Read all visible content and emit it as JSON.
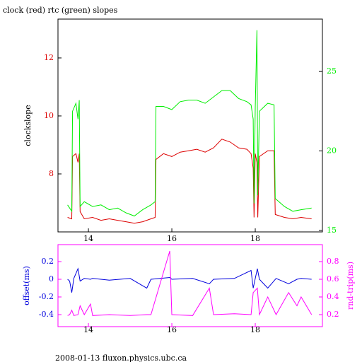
{
  "chart_data": [
    {
      "type": "line",
      "title": "clock (red) rtc (green) slopes",
      "ylabel": "clockslope",
      "x": [
        13.5,
        13.6,
        13.62,
        13.7,
        13.75,
        13.78,
        13.8,
        13.9,
        14.1,
        14.3,
        14.5,
        14.7,
        14.9,
        15.1,
        15.3,
        15.5,
        15.6,
        15.62,
        15.8,
        16.0,
        16.2,
        16.4,
        16.6,
        16.8,
        17.0,
        17.2,
        17.4,
        17.6,
        17.8,
        17.9,
        17.95,
        17.97,
        18.0,
        18.04,
        18.06,
        18.1,
        18.3,
        18.45,
        18.48,
        18.7,
        18.9,
        19.1,
        19.35
      ],
      "series": [
        {
          "color": "#dd0000",
          "values": [
            6.5,
            6.45,
            8.6,
            8.7,
            8.4,
            8.7,
            6.7,
            6.45,
            6.5,
            6.4,
            6.45,
            6.4,
            6.35,
            6.3,
            6.35,
            6.45,
            6.5,
            8.5,
            8.7,
            8.6,
            8.75,
            8.8,
            8.85,
            8.75,
            8.9,
            9.2,
            9.1,
            8.9,
            8.85,
            8.7,
            8.2,
            6.5,
            8.7,
            8.4,
            6.5,
            8.6,
            8.8,
            8.8,
            6.6,
            6.5,
            6.45,
            6.5,
            6.45
          ]
        },
        {
          "color": "#00ee00",
          "axis": "y2",
          "values": [
            16.6,
            16.2,
            22.5,
            23.0,
            22.0,
            23.2,
            16.5,
            16.8,
            16.5,
            16.6,
            16.3,
            16.4,
            16.1,
            15.9,
            16.3,
            16.6,
            16.8,
            22.8,
            22.8,
            22.6,
            23.1,
            23.2,
            23.2,
            23.0,
            23.4,
            23.8,
            23.8,
            23.3,
            23.1,
            22.9,
            22.0,
            16.7,
            22.7,
            27.6,
            17.2,
            22.5,
            23.0,
            22.9,
            17.0,
            16.5,
            16.2,
            16.3,
            16.4
          ]
        }
      ],
      "xlim": [
        13.27,
        19.61
      ],
      "xticks": [
        14,
        16,
        18
      ],
      "ylim": [
        6,
        13.34
      ],
      "yticks": [
        8,
        10,
        12
      ],
      "y2lim": [
        14.9,
        28.3
      ],
      "y2ticks": [
        15,
        20,
        25
      ]
    },
    {
      "type": "line",
      "ylabel": "offset(ms)",
      "y2label": "rnd-trip(ms)",
      "x": [
        13.5,
        13.55,
        13.6,
        13.65,
        13.75,
        13.8,
        13.9,
        14.05,
        14.1,
        14.5,
        15.0,
        15.4,
        15.5,
        15.95,
        16.0,
        16.5,
        16.9,
        17.0,
        17.5,
        17.9,
        17.95,
        18.05,
        18.1,
        18.3,
        18.5,
        18.8,
        19.0,
        19.1,
        19.35
      ],
      "series": [
        {
          "color": "#0000dd",
          "values": [
            0,
            -0.02,
            -0.15,
            0.01,
            0.12,
            -0.02,
            0.01,
            0,
            0.01,
            -0.01,
            0.01,
            -0.1,
            0,
            0.02,
            0,
            0.01,
            -0.05,
            0,
            0.01,
            0.1,
            -0.1,
            0.12,
            0,
            -0.1,
            0.01,
            -0.05,
            0,
            0.01,
            0
          ]
        },
        {
          "color": "#ff00ff",
          "axis": "y2",
          "values": [
            0.19,
            0.2,
            0.25,
            0.19,
            0.2,
            0.3,
            0.2,
            0.32,
            0.19,
            0.2,
            0.19,
            0.2,
            0.2,
            0.92,
            0.2,
            0.19,
            0.5,
            0.2,
            0.21,
            0.2,
            0.45,
            0.5,
            0.2,
            0.4,
            0.2,
            0.45,
            0.3,
            0.4,
            0.2
          ]
        }
      ],
      "xlim": [
        13.27,
        19.61
      ],
      "xticks": [
        14,
        16,
        18
      ],
      "ylim": [
        -0.536,
        0.392
      ],
      "yticks": [
        -0.4,
        -0.2,
        0,
        0.2
      ],
      "y2lim": [
        0.064,
        0.992
      ],
      "y2ticks": [
        0.2,
        0.4,
        0.6,
        0.8
      ]
    }
  ],
  "footer": "2008-01-13 fluxon.physics.ubc.ca"
}
